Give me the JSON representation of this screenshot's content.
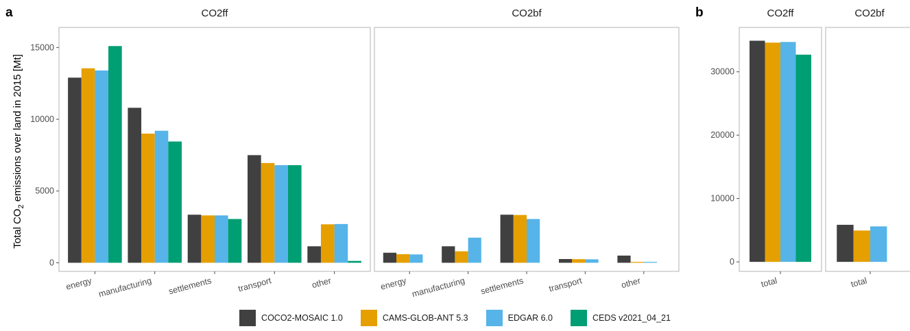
{
  "chart_data": [
    {
      "type": "bar",
      "panel_tag": "a",
      "facets": [
        {
          "title": "CO2ff",
          "categories": [
            "energy",
            "manufacturing",
            "settlements",
            "transport",
            "other"
          ],
          "series": [
            {
              "name": "COCO2-MOSAIC 1.0",
              "values": [
                12900,
                10800,
                3350,
                7500,
                1150
              ]
            },
            {
              "name": "CAMS-GLOB-ANT 5.3",
              "values": [
                13550,
                9000,
                3300,
                6950,
                2680
              ]
            },
            {
              "name": "EDGAR 6.0",
              "values": [
                13400,
                9200,
                3300,
                6800,
                2700
              ]
            },
            {
              "name": "CEDS v2021_04_21",
              "values": [
                15100,
                8450,
                3050,
                6800,
                130
              ]
            }
          ]
        },
        {
          "title": "CO2bf",
          "categories": [
            "energy",
            "manufacturing",
            "settlements",
            "transport",
            "other"
          ],
          "series": [
            {
              "name": "COCO2-MOSAIC 1.0",
              "values": [
                700,
                1150,
                3350,
                260,
                500
              ]
            },
            {
              "name": "CAMS-GLOB-ANT 5.3",
              "values": [
                600,
                800,
                3330,
                250,
                60
              ]
            },
            {
              "name": "EDGAR 6.0",
              "values": [
                580,
                1750,
                3050,
                240,
                60
              ]
            },
            {
              "name": "CEDS v2021_04_21",
              "values": [
                null,
                null,
                null,
                null,
                null
              ]
            }
          ]
        }
      ],
      "ylabel_prefix": "Total CO",
      "ylabel_sub": "2",
      "ylabel_suffix": " emissions over land in 2015 [Mt]",
      "yticks": [
        0,
        5000,
        10000,
        15000
      ],
      "ylim": [
        -600,
        16400
      ],
      "grid": false
    },
    {
      "type": "bar",
      "panel_tag": "b",
      "facets": [
        {
          "title": "CO2ff",
          "categories": [
            "total"
          ],
          "series": [
            {
              "name": "COCO2-MOSAIC 1.0",
              "values": [
                34900
              ]
            },
            {
              "name": "CAMS-GLOB-ANT 5.3",
              "values": [
                34600
              ]
            },
            {
              "name": "EDGAR 6.0",
              "values": [
                34700
              ]
            },
            {
              "name": "CEDS v2021_04_21",
              "values": [
                32700
              ]
            }
          ]
        },
        {
          "title": "CO2bf",
          "categories": [
            "total"
          ],
          "series": [
            {
              "name": "COCO2-MOSAIC 1.0",
              "values": [
                5850
              ]
            },
            {
              "name": "CAMS-GLOB-ANT 5.3",
              "values": [
                4950
              ]
            },
            {
              "name": "EDGAR 6.0",
              "values": [
                5600
              ]
            },
            {
              "name": "CEDS v2021_04_21",
              "values": [
                null
              ]
            }
          ]
        }
      ],
      "yticks": [
        0,
        10000,
        20000,
        30000
      ],
      "ylim": [
        -1500,
        37000
      ],
      "grid": false
    }
  ],
  "legend": {
    "placement": "bottom",
    "items": [
      {
        "label": "COCO2-MOSAIC 1.0",
        "color": "#404040"
      },
      {
        "label": "CAMS-GLOB-ANT 5.3",
        "color": "#E69F00"
      },
      {
        "label": "EDGAR 6.0",
        "color": "#56B4E9"
      },
      {
        "label": "CEDS v2021_04_21",
        "color": "#009E73"
      }
    ]
  }
}
